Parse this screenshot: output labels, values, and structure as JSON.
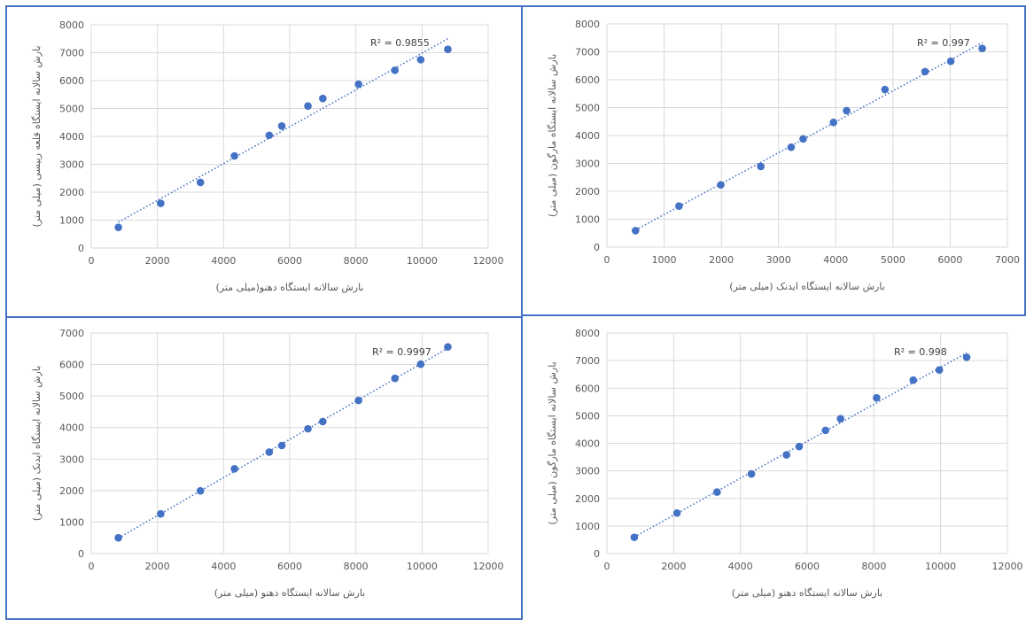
{
  "chart_data": [
    {
      "type": "scatter",
      "xlabel": "بارش سالانه ایستگاه دهنو(میلی متر)",
      "ylabel": "بارش سالانه ایستگاه قلعه رییسی (میلی متر)",
      "xlim": [
        0,
        12000
      ],
      "ylim": [
        0,
        8000
      ],
      "xticks": [
        0,
        2000,
        4000,
        6000,
        8000,
        10000,
        12000
      ],
      "yticks": [
        0,
        1000,
        2000,
        3000,
        4000,
        5000,
        6000,
        7000,
        8000
      ],
      "grid": true,
      "trendline": "linear",
      "r2_label": "R² = 0.9855",
      "points": [
        {
          "x": 820,
          "y": 740
        },
        {
          "x": 2100,
          "y": 1600
        },
        {
          "x": 3300,
          "y": 2350
        },
        {
          "x": 4330,
          "y": 3300
        },
        {
          "x": 5380,
          "y": 4040
        },
        {
          "x": 5760,
          "y": 4370
        },
        {
          "x": 6550,
          "y": 5090
        },
        {
          "x": 7000,
          "y": 5360
        },
        {
          "x": 8080,
          "y": 5870
        },
        {
          "x": 9180,
          "y": 6370
        },
        {
          "x": 9960,
          "y": 6750
        },
        {
          "x": 10780,
          "y": 7120
        }
      ]
    },
    {
      "type": "scatter",
      "xlabel": "بارش سالانه ایستگاه ایدنک (میلی متر)",
      "ylabel": "بارش سالانه ایستگاه مارگون (میلی متر)",
      "xlim": [
        0,
        7000
      ],
      "ylim": [
        0,
        8000
      ],
      "xticks": [
        0,
        1000,
        2000,
        3000,
        4000,
        5000,
        6000,
        7000
      ],
      "yticks": [
        0,
        1000,
        2000,
        3000,
        4000,
        5000,
        6000,
        7000,
        8000
      ],
      "grid": true,
      "trendline": "linear",
      "r2_label": "R² = 0.997",
      "points": [
        {
          "x": 500,
          "y": 590
        },
        {
          "x": 1260,
          "y": 1470
        },
        {
          "x": 1990,
          "y": 2230
        },
        {
          "x": 2690,
          "y": 2890
        },
        {
          "x": 3220,
          "y": 3580
        },
        {
          "x": 3430,
          "y": 3880
        },
        {
          "x": 3960,
          "y": 4470
        },
        {
          "x": 4190,
          "y": 4890
        },
        {
          "x": 4860,
          "y": 5650
        },
        {
          "x": 5560,
          "y": 6290
        },
        {
          "x": 6010,
          "y": 6660
        },
        {
          "x": 6560,
          "y": 7120
        }
      ]
    },
    {
      "type": "scatter",
      "xlabel": "بارش سالانه ایستگاه دهنو (میلی متر)",
      "ylabel": "بارش سالانه ایستگاه ایدنک (میلی متر)",
      "xlim": [
        0,
        12000
      ],
      "ylim": [
        0,
        7000
      ],
      "xticks": [
        0,
        2000,
        4000,
        6000,
        8000,
        10000,
        12000
      ],
      "yticks": [
        0,
        1000,
        2000,
        3000,
        4000,
        5000,
        6000,
        7000
      ],
      "grid": true,
      "trendline": "linear",
      "r2_label": "R² = 0.9997",
      "points": [
        {
          "x": 820,
          "y": 500
        },
        {
          "x": 2100,
          "y": 1260
        },
        {
          "x": 3300,
          "y": 1990
        },
        {
          "x": 4330,
          "y": 2690
        },
        {
          "x": 5380,
          "y": 3220
        },
        {
          "x": 5760,
          "y": 3430
        },
        {
          "x": 6550,
          "y": 3960
        },
        {
          "x": 7000,
          "y": 4190
        },
        {
          "x": 8080,
          "y": 4860
        },
        {
          "x": 9180,
          "y": 5560
        },
        {
          "x": 9960,
          "y": 6010
        },
        {
          "x": 10780,
          "y": 6560
        }
      ]
    },
    {
      "type": "scatter",
      "xlabel": "بارش سالانه ایستگاه دهنو (میلی متر)",
      "ylabel": "بارش سالانه ایستگاه مارگون (میلی متر)",
      "xlim": [
        0,
        12000
      ],
      "ylim": [
        0,
        8000
      ],
      "xticks": [
        0,
        2000,
        4000,
        6000,
        8000,
        10000,
        12000
      ],
      "yticks": [
        0,
        1000,
        2000,
        3000,
        4000,
        5000,
        6000,
        7000,
        8000
      ],
      "grid": true,
      "trendline": "linear",
      "r2_label": "R² = 0.998",
      "points": [
        {
          "x": 820,
          "y": 590
        },
        {
          "x": 2100,
          "y": 1470
        },
        {
          "x": 3300,
          "y": 2230
        },
        {
          "x": 4330,
          "y": 2890
        },
        {
          "x": 5380,
          "y": 3580
        },
        {
          "x": 5760,
          "y": 3880
        },
        {
          "x": 6550,
          "y": 4470
        },
        {
          "x": 7000,
          "y": 4890
        },
        {
          "x": 8080,
          "y": 5650
        },
        {
          "x": 9180,
          "y": 6290
        },
        {
          "x": 9960,
          "y": 6660
        },
        {
          "x": 10780,
          "y": 7120
        }
      ]
    }
  ],
  "colors": {
    "marker": "#4472c4",
    "trendline": "#4472c4",
    "grid": "#d9d9d9",
    "panel_border": "#4472c4",
    "text": "#595959"
  }
}
